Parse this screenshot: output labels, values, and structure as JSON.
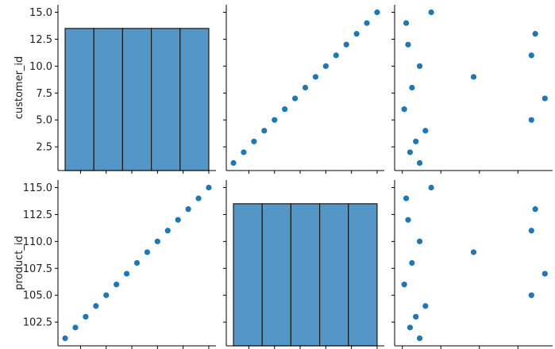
{
  "chart_data": {
    "type": "scatter",
    "layout": "pairplot",
    "variables": [
      "customer_id",
      "product_id",
      ""
    ],
    "colors": {
      "points": "#1f77b4",
      "bars": "#5497c7",
      "bar_edge": "#1a1a1a"
    },
    "grid": false,
    "legend": "none",
    "rows": [
      {
        "ylabel": "customer_id",
        "ylim": [
          0.3,
          15.7
        ],
        "yticks": [
          2.5,
          5.0,
          7.5,
          10.0,
          12.5,
          15.0
        ],
        "yticklabels": [
          "2.5",
          "5.0",
          "7.5",
          "10.0",
          "12.5",
          "15.0"
        ]
      },
      {
        "ylabel": "product_id",
        "ylim": [
          100.3,
          115.7
        ],
        "yticks": [
          102.5,
          105.0,
          107.5,
          110.0,
          112.5,
          115.0
        ],
        "yticklabels": [
          "102.5",
          "105.0",
          "107.5",
          "110.0",
          "112.5",
          "115.0"
        ]
      }
    ],
    "columns": [
      {
        "xlim": [
          0.3,
          15.7
        ],
        "xticks": [
          2.5,
          5.0,
          7.5,
          10.0,
          12.5,
          15.0
        ]
      },
      {
        "xlim": [
          100.3,
          115.7
        ],
        "xticks": [
          102.5,
          105.0,
          107.5,
          110.0,
          112.5,
          115.0
        ]
      },
      {
        "xlim": [
          -0.2,
          3.9
        ],
        "xticks": [
          0,
          1,
          2,
          3
        ]
      }
    ],
    "panels": [
      {
        "row": 0,
        "col": 0,
        "type": "histogram",
        "bins": [
          1.0,
          3.8,
          6.6,
          9.4,
          12.2,
          15.0
        ],
        "counts": [
          3,
          3,
          3,
          3,
          3
        ],
        "count_ylim": [
          0,
          3.5
        ]
      },
      {
        "row": 0,
        "col": 1,
        "type": "scatter",
        "x": [
          101,
          102,
          103,
          104,
          105,
          106,
          107,
          108,
          109,
          110,
          111,
          112,
          113,
          114,
          115
        ],
        "y": [
          1,
          2,
          3,
          4,
          5,
          6,
          7,
          8,
          9,
          10,
          11,
          12,
          13,
          14,
          15
        ]
      },
      {
        "row": 0,
        "col": 2,
        "type": "scatter",
        "x": [
          0.45,
          0.2,
          0.35,
          0.6,
          3.35,
          0.05,
          3.7,
          0.25,
          1.85,
          0.45,
          3.35,
          0.15,
          3.45,
          0.1,
          0.75
        ],
        "y": [
          1,
          2,
          3,
          4,
          5,
          6,
          7,
          8,
          9,
          10,
          11,
          12,
          13,
          14,
          15
        ]
      },
      {
        "row": 1,
        "col": 0,
        "type": "scatter",
        "x": [
          1,
          2,
          3,
          4,
          5,
          6,
          7,
          8,
          9,
          10,
          11,
          12,
          13,
          14,
          15
        ],
        "y": [
          101,
          102,
          103,
          104,
          105,
          106,
          107,
          108,
          109,
          110,
          111,
          112,
          113,
          114,
          115
        ]
      },
      {
        "row": 1,
        "col": 1,
        "type": "histogram",
        "bins": [
          101.0,
          103.8,
          106.6,
          109.4,
          112.2,
          115.0
        ],
        "counts": [
          3,
          3,
          3,
          3,
          3
        ],
        "count_ylim": [
          0,
          3.5
        ]
      },
      {
        "row": 1,
        "col": 2,
        "type": "scatter",
        "x": [
          0.45,
          0.2,
          0.35,
          0.6,
          3.35,
          0.05,
          3.7,
          0.25,
          1.85,
          0.45,
          3.35,
          0.15,
          3.45,
          0.1,
          0.75
        ],
        "y": [
          101,
          102,
          103,
          104,
          105,
          106,
          107,
          108,
          109,
          110,
          111,
          112,
          113,
          114,
          115
        ]
      }
    ]
  }
}
